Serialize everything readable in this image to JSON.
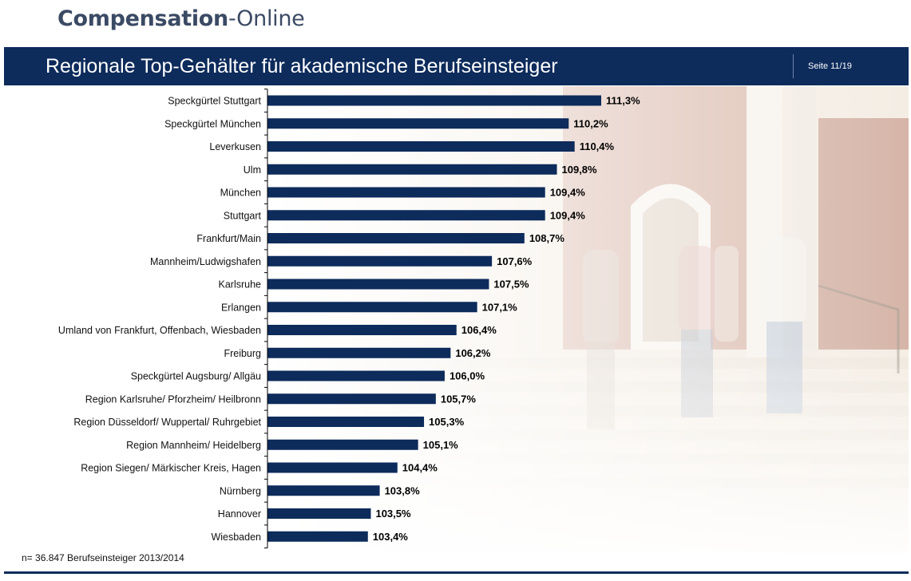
{
  "brand": {
    "part1": "Compensation",
    "part2": "-Online"
  },
  "header": {
    "title": "Regionale Top-Gehälter für akademische Berufseinsteiger",
    "page": "Seite 11/19"
  },
  "footnote": "n= 36.847 Berufseinsteiger 2013/2014",
  "colors": {
    "bar": "#0d2b5b",
    "header": "#0d2b5b"
  },
  "chart_data": {
    "type": "bar",
    "orientation": "horizontal",
    "categories": [
      "Speckgürtel Stuttgart",
      "Speckgürtel München",
      "Leverkusen",
      "Ulm",
      "München",
      "Stuttgart",
      "Frankfurt/Main",
      "Mannheim/Ludwigshafen",
      "Karlsruhe",
      "Erlangen",
      "Umland von Frankfurt, Offenbach, Wiesbaden",
      "Freiburg",
      "Speckgürtel Augsburg/ Allgäu",
      "Region Karlsruhe/ Pforzheim/ Heilbronn",
      "Region Düsseldorf/ Wuppertal/ Ruhrgebiet",
      "Region Mannheim/ Heidelberg",
      "Region Siegen/ Märkischer Kreis, Hagen",
      "Nürnberg",
      "Hannover",
      "Wiesbaden"
    ],
    "values": [
      111.3,
      110.2,
      110.4,
      109.8,
      109.4,
      109.4,
      108.7,
      107.6,
      107.5,
      107.1,
      106.4,
      106.2,
      106.0,
      105.7,
      105.3,
      105.1,
      104.4,
      103.8,
      103.5,
      103.4
    ],
    "value_labels": [
      "111,3%",
      "110,2%",
      "110,4%",
      "109,8%",
      "109,4%",
      "109,4%",
      "108,7%",
      "107,6%",
      "107,5%",
      "107,1%",
      "106,4%",
      "106,2%",
      "106,0%",
      "105,7%",
      "105,3%",
      "105,1%",
      "104,4%",
      "103,8%",
      "103,5%",
      "103,4%"
    ],
    "xlim": [
      100,
      113.5
    ],
    "grid": false
  }
}
